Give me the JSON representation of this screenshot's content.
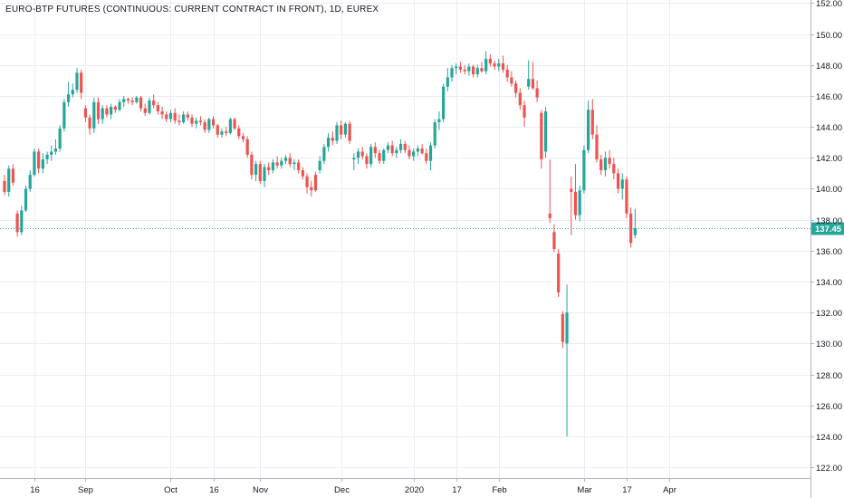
{
  "chart_data": {
    "type": "candlestick",
    "title": "EURO-BTP FUTURES (CONTINUOUS: CURRENT CONTRACT IN FRONT), 1D, EUREX",
    "ylim": [
      121.3,
      152.2
    ],
    "y_ticks": [
      "122.00",
      "124.00",
      "126.00",
      "128.00",
      "130.00",
      "132.00",
      "134.00",
      "136.00",
      "138.00",
      "140.00",
      "142.00",
      "144.00",
      "146.00",
      "148.00",
      "150.00",
      "152.00"
    ],
    "x_ticks": [
      {
        "label": "16",
        "index": 7
      },
      {
        "label": "Sep",
        "index": 19
      },
      {
        "label": "Oct",
        "index": 39
      },
      {
        "label": "16",
        "index": 49
      },
      {
        "label": "Nov",
        "index": 60
      },
      {
        "label": "Dec",
        "index": 79
      },
      {
        "label": "2020",
        "index": 96
      },
      {
        "label": "17",
        "index": 106
      },
      {
        "label": "Feb",
        "index": 116
      },
      {
        "label": "Mar",
        "index": 136
      },
      {
        "label": "17",
        "index": 146
      },
      {
        "label": "Apr",
        "index": 156
      }
    ],
    "last_price": "137.45",
    "grid": true,
    "colors": {
      "up": "#26a69a",
      "down": "#ef5350",
      "price_line": "#26a69a",
      "grid": "#e9edf3",
      "axis_text": "#131722"
    },
    "candles": [
      [
        140.5,
        140.9,
        139.6,
        139.8
      ],
      [
        139.8,
        141.5,
        139.5,
        141.3
      ],
      [
        141.3,
        141.6,
        140.2,
        140.4
      ],
      [
        138.4,
        138.6,
        136.9,
        137.2
      ],
      [
        137.2,
        138.9,
        137.0,
        138.6
      ],
      [
        138.6,
        140.2,
        138.5,
        140.0
      ],
      [
        140.0,
        141.2,
        139.8,
        140.9
      ],
      [
        140.9,
        142.6,
        140.8,
        142.4
      ],
      [
        142.4,
        142.6,
        141.0,
        141.3
      ],
      [
        141.3,
        142.3,
        141.0,
        141.9
      ],
      [
        141.9,
        142.4,
        141.6,
        142.2
      ],
      [
        142.2,
        142.8,
        141.8,
        142.4
      ],
      [
        142.4,
        143.2,
        142.2,
        142.6
      ],
      [
        142.6,
        144.1,
        142.4,
        143.9
      ],
      [
        143.9,
        145.8,
        143.7,
        145.6
      ],
      [
        145.6,
        146.9,
        145.3,
        146.1
      ],
      [
        146.1,
        146.8,
        145.9,
        146.4
      ],
      [
        146.4,
        147.8,
        146.2,
        147.5
      ],
      [
        147.5,
        147.7,
        145.8,
        146.2
      ],
      [
        145.2,
        145.4,
        144.3,
        144.6
      ],
      [
        144.6,
        144.8,
        143.5,
        143.9
      ],
      [
        143.9,
        145.9,
        143.6,
        145.6
      ],
      [
        145.6,
        145.9,
        144.2,
        144.5
      ],
      [
        144.5,
        145.4,
        144.2,
        145.2
      ],
      [
        145.2,
        145.4,
        144.6,
        144.8
      ],
      [
        144.8,
        145.5,
        144.5,
        145.3
      ],
      [
        145.3,
        145.4,
        144.9,
        145.1
      ],
      [
        145.1,
        145.8,
        145.0,
        145.6
      ],
      [
        145.6,
        146.0,
        145.3,
        145.8
      ],
      [
        145.8,
        145.9,
        145.5,
        145.7
      ],
      [
        145.7,
        145.9,
        145.4,
        145.6
      ],
      [
        145.6,
        146.0,
        145.5,
        145.9
      ],
      [
        145.9,
        146.0,
        145.0,
        145.2
      ],
      [
        145.2,
        145.5,
        144.7,
        144.9
      ],
      [
        144.9,
        145.9,
        144.8,
        145.7
      ],
      [
        145.7,
        146.1,
        145.2,
        145.4
      ],
      [
        145.4,
        145.6,
        144.8,
        145.0
      ],
      [
        145.0,
        145.3,
        144.5,
        144.8
      ],
      [
        144.8,
        145.0,
        144.3,
        144.5
      ],
      [
        144.5,
        145.1,
        144.3,
        144.9
      ],
      [
        144.9,
        145.2,
        144.2,
        144.4
      ],
      [
        144.4,
        144.8,
        144.1,
        144.3
      ],
      [
        144.3,
        145.0,
        144.2,
        144.8
      ],
      [
        144.8,
        145.0,
        144.4,
        144.6
      ],
      [
        144.6,
        144.8,
        144.0,
        144.2
      ],
      [
        144.2,
        144.6,
        143.9,
        144.4
      ],
      [
        144.4,
        144.7,
        144.1,
        144.3
      ],
      [
        144.3,
        144.5,
        143.6,
        143.8
      ],
      [
        143.8,
        144.6,
        143.6,
        144.5
      ],
      [
        144.5,
        144.7,
        143.9,
        144.1
      ],
      [
        144.1,
        144.2,
        143.3,
        143.5
      ],
      [
        143.5,
        143.9,
        143.3,
        143.7
      ],
      [
        143.7,
        144.0,
        143.4,
        143.6
      ],
      [
        143.6,
        144.6,
        143.5,
        144.5
      ],
      [
        144.5,
        144.6,
        143.8,
        143.9
      ],
      [
        143.9,
        144.1,
        143.2,
        143.4
      ],
      [
        143.4,
        143.6,
        143.0,
        143.2
      ],
      [
        143.2,
        143.4,
        142.0,
        142.2
      ],
      [
        142.2,
        142.4,
        140.6,
        140.9
      ],
      [
        140.9,
        141.8,
        140.5,
        141.6
      ],
      [
        141.6,
        141.8,
        140.3,
        140.5
      ],
      [
        140.5,
        141.6,
        140.1,
        141.4
      ],
      [
        141.4,
        141.7,
        140.9,
        141.2
      ],
      [
        141.2,
        141.9,
        141.0,
        141.7
      ],
      [
        141.7,
        142.1,
        141.3,
        141.5
      ],
      [
        141.5,
        142.0,
        141.3,
        141.8
      ],
      [
        141.8,
        142.2,
        141.6,
        142.0
      ],
      [
        142.0,
        142.3,
        141.4,
        141.6
      ],
      [
        141.6,
        141.9,
        141.2,
        141.7
      ],
      [
        141.7,
        141.9,
        141.0,
        141.2
      ],
      [
        141.2,
        141.4,
        140.6,
        140.8
      ],
      [
        140.8,
        141.0,
        139.7,
        140.1
      ],
      [
        140.1,
        140.5,
        139.5,
        139.9
      ],
      [
        140.9,
        141.1,
        139.8,
        139.9
      ],
      [
        141.2,
        142.1,
        141.0,
        141.8
      ],
      [
        141.8,
        142.9,
        141.6,
        142.7
      ],
      [
        142.7,
        143.6,
        142.4,
        143.3
      ],
      [
        143.3,
        143.7,
        142.8,
        143.1
      ],
      [
        143.1,
        144.3,
        142.9,
        144.1
      ],
      [
        144.1,
        144.4,
        143.2,
        143.5
      ],
      [
        143.5,
        144.3,
        143.3,
        144.2
      ],
      [
        144.2,
        144.4,
        142.9,
        143.1
      ],
      [
        141.9,
        142.3,
        141.2,
        142.0
      ],
      [
        142.0,
        142.6,
        141.6,
        142.4
      ],
      [
        142.4,
        142.7,
        141.9,
        142.1
      ],
      [
        142.1,
        142.3,
        141.3,
        141.6
      ],
      [
        141.6,
        142.9,
        141.4,
        142.7
      ],
      [
        142.7,
        143.0,
        142.0,
        142.3
      ],
      [
        142.3,
        142.5,
        141.6,
        141.8
      ],
      [
        141.8,
        142.6,
        141.6,
        142.5
      ],
      [
        142.5,
        143.0,
        142.3,
        142.8
      ],
      [
        142.8,
        143.1,
        142.1,
        142.3
      ],
      [
        142.3,
        142.7,
        142.0,
        142.5
      ],
      [
        142.5,
        143.2,
        142.3,
        142.9
      ],
      [
        142.9,
        143.1,
        142.3,
        142.5
      ],
      [
        142.5,
        142.8,
        141.9,
        142.1
      ],
      [
        142.1,
        142.6,
        141.8,
        142.4
      ],
      [
        142.4,
        142.8,
        142.1,
        142.6
      ],
      [
        142.6,
        142.9,
        142.2,
        142.3
      ],
      [
        142.3,
        142.6,
        141.6,
        141.8
      ],
      [
        141.8,
        143.0,
        141.2,
        142.8
      ],
      [
        142.8,
        144.5,
        142.6,
        144.3
      ],
      [
        144.3,
        145.0,
        143.8,
        144.5
      ],
      [
        144.5,
        146.8,
        144.3,
        146.6
      ],
      [
        146.6,
        147.8,
        146.3,
        147.2
      ],
      [
        147.2,
        148.0,
        146.9,
        147.8
      ],
      [
        147.8,
        148.1,
        147.4,
        147.9
      ],
      [
        147.9,
        148.2,
        147.5,
        147.7
      ],
      [
        147.7,
        148.0,
        147.4,
        147.6
      ],
      [
        147.6,
        148.1,
        147.3,
        147.9
      ],
      [
        147.9,
        148.0,
        147.2,
        147.4
      ],
      [
        147.4,
        148.0,
        147.2,
        147.8
      ],
      [
        147.8,
        148.2,
        147.5,
        147.6
      ],
      [
        147.6,
        148.9,
        147.4,
        148.4
      ],
      [
        148.4,
        148.7,
        147.9,
        148.1
      ],
      [
        148.1,
        148.3,
        147.7,
        147.9
      ],
      [
        147.9,
        148.4,
        147.6,
        148.1
      ],
      [
        148.1,
        148.6,
        147.5,
        147.7
      ],
      [
        147.7,
        148.0,
        146.9,
        147.2
      ],
      [
        147.2,
        147.6,
        146.6,
        146.8
      ],
      [
        146.8,
        147.0,
        145.9,
        146.2
      ],
      [
        146.2,
        146.5,
        145.1,
        145.4
      ],
      [
        145.4,
        145.7,
        144.0,
        144.6
      ],
      [
        146.6,
        148.3,
        146.4,
        147.1
      ],
      [
        147.1,
        148.2,
        146.4,
        146.5
      ],
      [
        146.5,
        147.0,
        145.6,
        145.9
      ],
      [
        144.9,
        145.1,
        141.3,
        141.9
      ],
      [
        142.4,
        145.3,
        142.0,
        145.0
      ],
      [
        138.4,
        141.9,
        137.8,
        138.1
      ],
      [
        137.2,
        137.7,
        135.9,
        136.1
      ],
      [
        135.8,
        136.1,
        133.0,
        133.3
      ],
      [
        131.9,
        132.1,
        129.7,
        130.1
      ],
      [
        130.0,
        133.8,
        124.0,
        132.0
      ],
      [
        140.0,
        140.8,
        137.0,
        139.8
      ],
      [
        139.8,
        141.6,
        138.0,
        138.3
      ],
      [
        138.3,
        140.2,
        137.9,
        139.9
      ],
      [
        139.9,
        142.8,
        139.7,
        142.5
      ],
      [
        142.5,
        145.7,
        142.3,
        145.1
      ],
      [
        145.1,
        145.8,
        143.2,
        143.5
      ],
      [
        143.5,
        144.1,
        141.7,
        141.9
      ],
      [
        141.9,
        142.2,
        140.9,
        141.2
      ],
      [
        141.2,
        142.4,
        140.8,
        142.0
      ],
      [
        142.0,
        142.5,
        141.3,
        141.6
      ],
      [
        141.6,
        142.0,
        140.6,
        141.0
      ],
      [
        141.0,
        141.3,
        139.7,
        140.0
      ],
      [
        140.0,
        141.0,
        139.3,
        140.6
      ],
      [
        140.6,
        140.8,
        138.1,
        138.4
      ],
      [
        138.4,
        138.8,
        136.2,
        136.5
      ],
      [
        137.0,
        138.7,
        136.8,
        137.45
      ]
    ]
  }
}
